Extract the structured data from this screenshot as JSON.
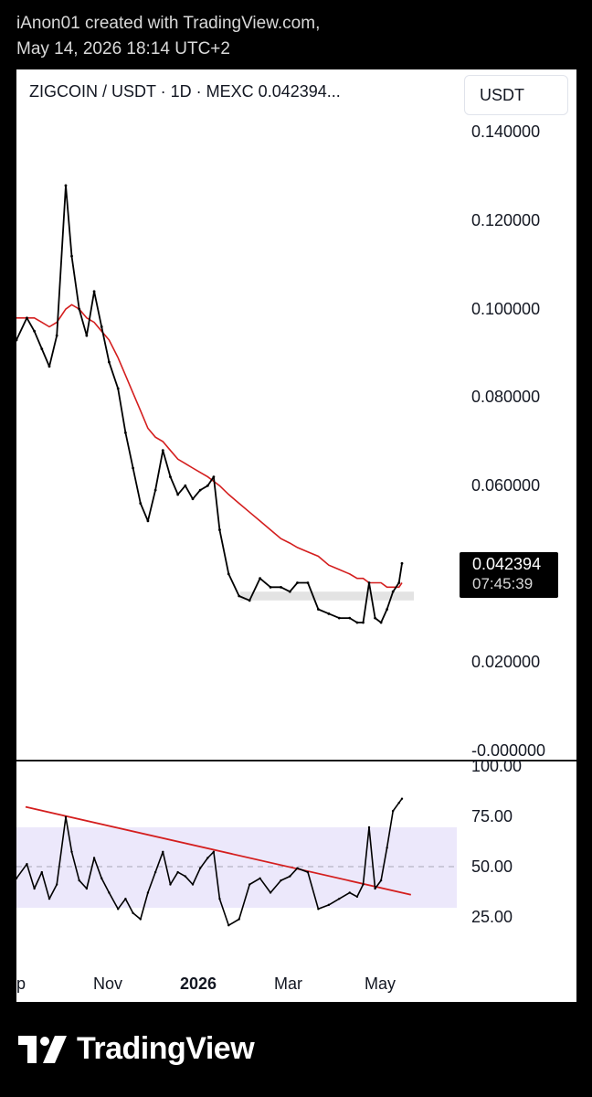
{
  "header": {
    "line1": "iAnon01 created with TradingView.com,",
    "line2": "May 14, 2026 18:14 UTC+2"
  },
  "symbol": {
    "title": "ZIGCOIN / USDT · 1D · MEXC  0.042394..."
  },
  "currency_button": "USDT",
  "last_price": {
    "price": "0.042394",
    "countdown": "07:45:39"
  },
  "footer": {
    "brand": "TradingView"
  },
  "colors": {
    "price": "#000000",
    "ma": "#d41e1e",
    "trendline": "#d41e1e",
    "rsi_band": "#ece8fb",
    "support_zone": "#e3e3e3"
  },
  "chart_data": [
    {
      "type": "line",
      "price_axis": [
        "0.140000",
        "0.120000",
        "0.100000",
        "0.080000",
        "0.060000",
        "0.020000",
        "-0.000000"
      ],
      "x_labels": [
        "ep",
        "Nov",
        "2026",
        "Mar",
        "May"
      ],
      "ylim": [
        0,
        0.14
      ],
      "x": [
        "2025-08-29",
        "2025-09-05",
        "2025-09-10",
        "2025-09-15",
        "2025-09-20",
        "2025-09-25",
        "2025-10-01",
        "2025-10-05",
        "2025-10-10",
        "2025-10-15",
        "2025-10-20",
        "2025-10-25",
        "2025-10-30",
        "2025-11-05",
        "2025-11-10",
        "2025-11-15",
        "2025-11-20",
        "2025-11-25",
        "2025-11-30",
        "2025-12-05",
        "2025-12-10",
        "2025-12-15",
        "2025-12-20",
        "2025-12-25",
        "2025-12-30",
        "2026-01-04",
        "2026-01-08",
        "2026-01-12",
        "2026-01-18",
        "2026-01-25",
        "2026-02-01",
        "2026-02-08",
        "2026-02-15",
        "2026-02-22",
        "2026-02-28",
        "2026-03-05",
        "2026-03-12",
        "2026-03-19",
        "2026-03-26",
        "2026-04-02",
        "2026-04-09",
        "2026-04-14",
        "2026-04-18",
        "2026-04-22",
        "2026-04-26",
        "2026-04-30",
        "2026-05-04",
        "2026-05-08",
        "2026-05-12",
        "2026-05-14"
      ],
      "series": [
        {
          "values": [
            0.093,
            0.098,
            0.095,
            0.091,
            0.087,
            0.094,
            0.128,
            0.112,
            0.1,
            0.094,
            0.104,
            0.096,
            0.088,
            0.082,
            0.072,
            0.064,
            0.056,
            0.052,
            0.059,
            0.068,
            0.062,
            0.058,
            0.06,
            0.057,
            0.059,
            0.06,
            0.062,
            0.05,
            0.04,
            0.035,
            0.034,
            0.039,
            0.037,
            0.037,
            0.036,
            0.038,
            0.038,
            0.032,
            0.031,
            0.03,
            0.03,
            0.029,
            0.029,
            0.038,
            0.03,
            0.029,
            0.032,
            0.036,
            0.038,
            0.042394
          ]
        },
        {
          "values": [
            0.098,
            0.098,
            0.098,
            0.097,
            0.096,
            0.097,
            0.1,
            0.101,
            0.1,
            0.098,
            0.097,
            0.095,
            0.093,
            0.089,
            0.085,
            0.081,
            0.077,
            0.073,
            0.071,
            0.07,
            0.068,
            0.066,
            0.065,
            0.064,
            0.063,
            0.062,
            0.061,
            0.06,
            0.058,
            0.056,
            0.054,
            0.052,
            0.05,
            0.048,
            0.047,
            0.046,
            0.045,
            0.044,
            0.042,
            0.041,
            0.04,
            0.039,
            0.039,
            0.038,
            0.038,
            0.038,
            0.037,
            0.037,
            0.037,
            0.038
          ]
        }
      ],
      "support_zone": [
        0.034,
        0.036
      ]
    },
    {
      "type": "line",
      "rsi_axis": [
        "100.00",
        "75.00",
        "50.00",
        "25.00"
      ],
      "ylim": [
        10,
        100
      ],
      "band": [
        30,
        70
      ],
      "midline": 50,
      "x": [
        "2025-08-29",
        "2025-09-05",
        "2025-09-10",
        "2025-09-15",
        "2025-09-20",
        "2025-09-25",
        "2025-10-01",
        "2025-10-05",
        "2025-10-10",
        "2025-10-15",
        "2025-10-20",
        "2025-10-25",
        "2025-10-30",
        "2025-11-05",
        "2025-11-10",
        "2025-11-15",
        "2025-11-20",
        "2025-11-25",
        "2025-11-30",
        "2025-12-05",
        "2025-12-10",
        "2025-12-15",
        "2025-12-20",
        "2025-12-25",
        "2025-12-30",
        "2026-01-04",
        "2026-01-08",
        "2026-01-12",
        "2026-01-18",
        "2026-01-25",
        "2026-02-01",
        "2026-02-08",
        "2026-02-15",
        "2026-02-22",
        "2026-02-28",
        "2026-03-05",
        "2026-03-12",
        "2026-03-19",
        "2026-03-26",
        "2026-04-02",
        "2026-04-09",
        "2026-04-14",
        "2026-04-18",
        "2026-04-22",
        "2026-04-26",
        "2026-04-30",
        "2026-05-04",
        "2026-05-08",
        "2026-05-12",
        "2026-05-14"
      ],
      "series": [
        {
          "values": [
            45,
            52,
            40,
            48,
            35,
            42,
            75,
            58,
            44,
            40,
            55,
            45,
            38,
            30,
            35,
            28,
            25,
            38,
            48,
            58,
            42,
            48,
            46,
            42,
            50,
            55,
            58,
            35,
            22,
            25,
            42,
            45,
            38,
            44,
            46,
            50,
            48,
            30,
            32,
            35,
            38,
            36,
            42,
            70,
            40,
            44,
            60,
            78,
            82,
            84
          ]
        }
      ],
      "trendline": {
        "x": [
          "2025-08-29",
          "2026-05-20"
        ],
        "y": [
          80,
          37
        ]
      }
    }
  ]
}
